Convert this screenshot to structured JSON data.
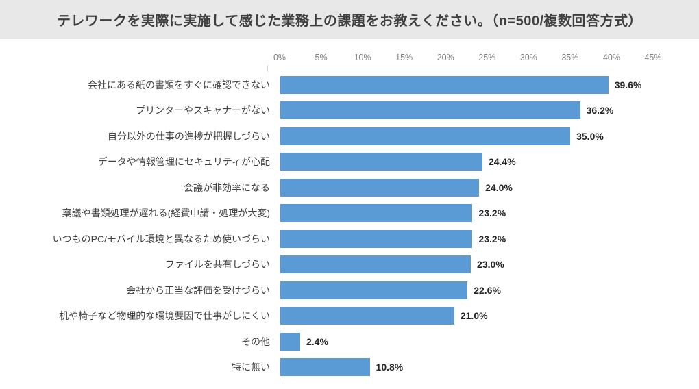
{
  "title": "テレワークを実際に実施して感じた業務上の課題をお教えください。（n=500/複数回答方式）",
  "chart_data": {
    "type": "bar",
    "orientation": "horizontal",
    "title": "テレワークを実際に実施して感じた業務上の課題をお教えください。（n=500/複数回答方式）",
    "sample_note": "n=500/複数回答方式",
    "categories": [
      "会社にある紙の書類をすぐに確認できない",
      "プリンターやスキャナーがない",
      "自分以外の仕事の進捗が把握しづらい",
      "データや情報管理にセキュリティが心配",
      "会議が非効率になる",
      "稟議や書類処理が遅れる(経費申請・処理が大変)",
      "いつものPC/モバイル環境と異なるため使いづらい",
      "ファイルを共有しづらい",
      "会社から正当な評価を受けづらい",
      "机や椅子など物理的な環境要因で仕事がしにくい",
      "その他",
      "特に無い"
    ],
    "values": [
      39.6,
      36.2,
      35.0,
      24.4,
      24.0,
      23.2,
      23.2,
      23.0,
      22.6,
      21.0,
      2.4,
      10.8
    ],
    "value_labels": [
      "39.6%",
      "36.2%",
      "35.0%",
      "24.4%",
      "24.0%",
      "23.2%",
      "23.2%",
      "23.0%",
      "22.6%",
      "21.0%",
      "2.4%",
      "10.8%"
    ],
    "x_ticks": [
      "0%",
      "5%",
      "10%",
      "15%",
      "20%",
      "25%",
      "30%",
      "35%",
      "40%",
      "45%"
    ],
    "x_tick_values": [
      0,
      5,
      10,
      15,
      20,
      25,
      30,
      35,
      40,
      45
    ],
    "xlim": [
      0,
      45
    ],
    "grid": false,
    "legend": "none",
    "colors": {
      "bar": "#5B9BD5",
      "title_bar_bg": "#E8E8E8",
      "title_text": "#404040",
      "tick_text": "#7F7F7F",
      "label_text": "#404040",
      "value_text": "#262626",
      "axis_line": "#D6D6D6"
    }
  }
}
